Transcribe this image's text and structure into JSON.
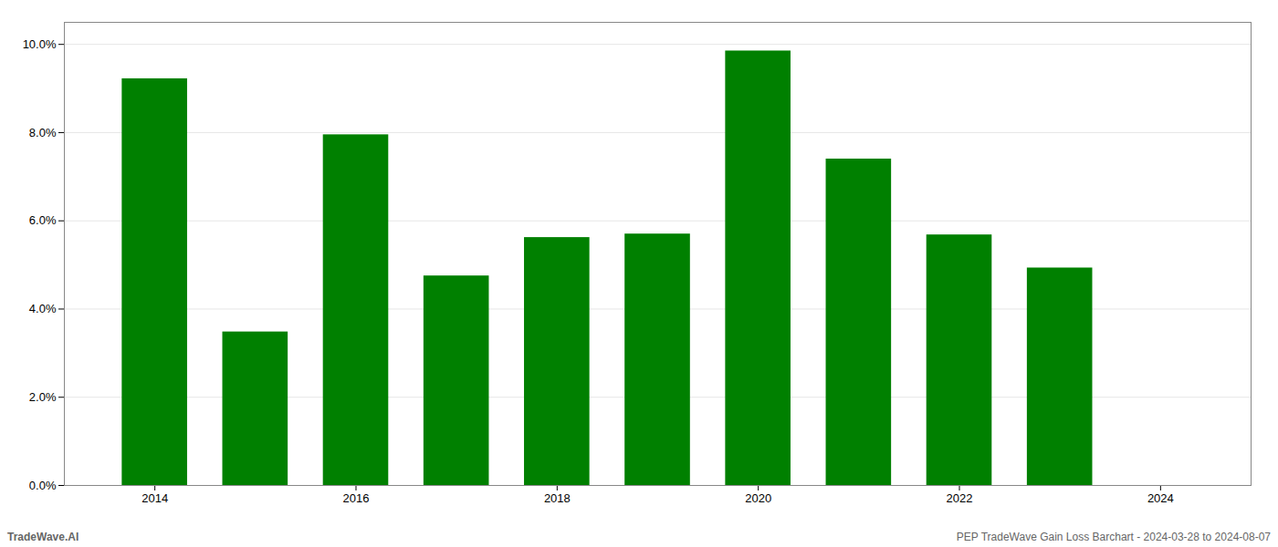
{
  "chart_data": {
    "type": "bar",
    "x": [
      2014,
      2015,
      2016,
      2017,
      2018,
      2019,
      2020,
      2021,
      2022,
      2023
    ],
    "values": [
      0.0922,
      0.0348,
      0.0795,
      0.0475,
      0.0562,
      0.057,
      0.0985,
      0.074,
      0.0568,
      0.0493
    ],
    "color": "#008000",
    "xlim": [
      2013.1,
      2024.9
    ],
    "xticks": [
      2014,
      2016,
      2018,
      2020,
      2022,
      2024
    ],
    "ylim": [
      0,
      0.105
    ],
    "yticks": [
      {
        "value": 0.0,
        "label": "0.0%"
      },
      {
        "value": 0.02,
        "label": "2.0%"
      },
      {
        "value": 0.04,
        "label": "4.0%"
      },
      {
        "value": 0.06,
        "label": "6.0%"
      },
      {
        "value": 0.08,
        "label": "8.0%"
      },
      {
        "value": 0.1,
        "label": "10.0%"
      }
    ],
    "grid": true,
    "annotations": [
      "TradeWave.AI",
      "PEP TradeWave Gain Loss Barchart - 2024-03-28 to 2024-08-07"
    ]
  }
}
